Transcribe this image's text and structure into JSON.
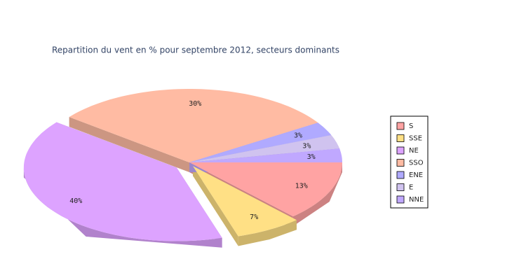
{
  "chart_data": {
    "type": "pie3d",
    "title": "Repartition du vent en % pour septembre 2012, secteurs dominants",
    "categories": [
      "S",
      "SSE",
      "NE",
      "SSO",
      "ENE",
      "E",
      "NNE"
    ],
    "values": [
      13,
      7,
      40,
      30,
      3,
      3,
      3
    ],
    "value_labels": [
      "13%",
      "7%",
      "40%",
      "30%",
      "3%",
      "3%",
      "3%"
    ],
    "colors": [
      "#ffa3a3",
      "#ffe085",
      "#dda3ff",
      "#ffbba3",
      "#b0aaff",
      "#d0c3ef",
      "#c0a8ff"
    ],
    "legend": "right"
  }
}
